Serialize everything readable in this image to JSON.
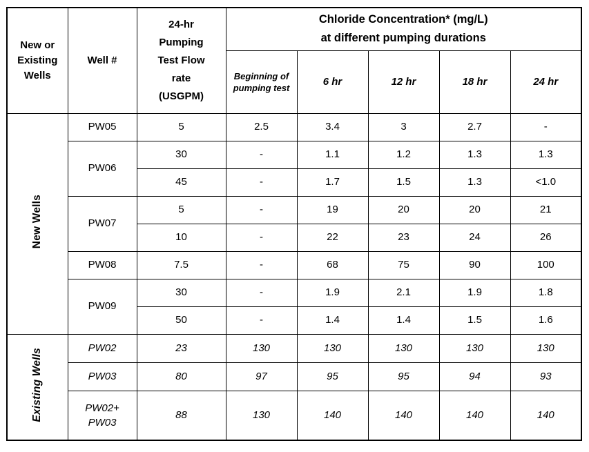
{
  "doc": {
    "header": {
      "group_col": "New or Existing Wells",
      "well_col": "Well #",
      "flow_col": "24-hr Pumping Test Flow rate (USGPM)",
      "chloride_line1": "Chloride Concentration* (mg/L)",
      "chloride_line2": "at different pumping durations",
      "durations": [
        "Beginning of pumping test",
        "6 hr",
        "12 hr",
        "18 hr",
        "24 hr"
      ]
    },
    "sections": {
      "new_label": "New Wells",
      "existing_label": "Existing Wells"
    },
    "rows": [
      {
        "well": "PW05",
        "flow": "5",
        "c": [
          "2.5",
          "3.4",
          "3",
          "2.7",
          "-"
        ]
      },
      {
        "well": "PW06",
        "flow": "30",
        "c": [
          "-",
          "1.1",
          "1.2",
          "1.3",
          "1.3"
        ]
      },
      {
        "well": "",
        "flow": "45",
        "c": [
          "-",
          "1.7",
          "1.5",
          "1.3",
          "<1.0"
        ]
      },
      {
        "well": "PW07",
        "flow": "5",
        "c": [
          "-",
          "19",
          "20",
          "20",
          "21"
        ]
      },
      {
        "well": "",
        "flow": "10",
        "c": [
          "-",
          "22",
          "23",
          "24",
          "26"
        ]
      },
      {
        "well": "PW08",
        "flow": "7.5",
        "c": [
          "-",
          "68",
          "75",
          "90",
          "100"
        ]
      },
      {
        "well": "PW09",
        "flow": "30",
        "c": [
          "-",
          "1.9",
          "2.1",
          "1.9",
          "1.8"
        ]
      },
      {
        "well": "",
        "flow": "50",
        "c": [
          "-",
          "1.4",
          "1.4",
          "1.5",
          "1.6"
        ]
      },
      {
        "well": "PW02",
        "flow": "23",
        "c": [
          "130",
          "130",
          "130",
          "130",
          "130"
        ]
      },
      {
        "well": "PW03",
        "flow": "80",
        "c": [
          "97",
          "95",
          "95",
          "94",
          "93"
        ]
      },
      {
        "well": "PW02+\nPW03",
        "flow": "88",
        "c": [
          "130",
          "140",
          "140",
          "140",
          "140"
        ]
      }
    ]
  }
}
